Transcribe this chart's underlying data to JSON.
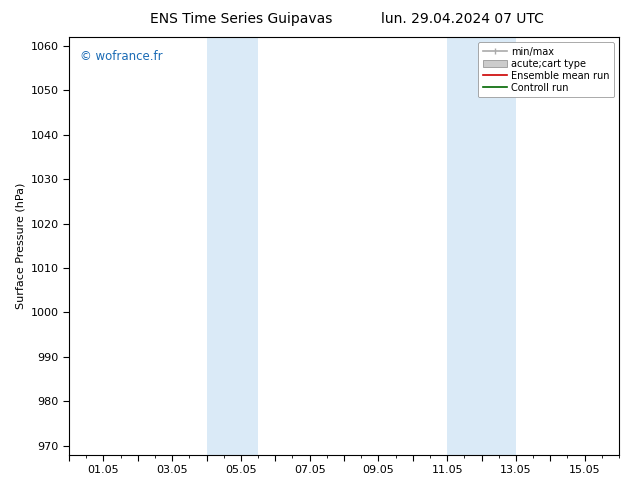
{
  "title_left": "ENS Time Series Guipavas",
  "title_right": "lun. 29.04.2024 07 UTC",
  "ylabel": "Surface Pressure (hPa)",
  "xlim": [
    0.0,
    16.0
  ],
  "ylim": [
    968,
    1062
  ],
  "yticks": [
    970,
    980,
    990,
    1000,
    1010,
    1020,
    1030,
    1040,
    1050,
    1060
  ],
  "xtick_labels": [
    "",
    "01.05",
    "",
    "03.05",
    "",
    "05.05",
    "",
    "07.05",
    "",
    "09.05",
    "",
    "11.05",
    "",
    "13.05",
    "",
    "15.05"
  ],
  "xtick_positions": [
    0,
    1,
    2,
    3,
    4,
    5,
    6,
    7,
    8,
    9,
    10,
    11,
    12,
    13,
    14,
    15
  ],
  "shaded_regions": [
    {
      "xmin": 4.0,
      "xmax": 5.5,
      "color": "#daeaf7"
    },
    {
      "xmin": 11.0,
      "xmax": 13.0,
      "color": "#daeaf7"
    }
  ],
  "watermark": "© wofrance.fr",
  "watermark_color": "#1a6bb5",
  "legend_entries": [
    {
      "label": "min/max",
      "type": "minmax",
      "color": "#aaaaaa"
    },
    {
      "label": "acute;cart type",
      "type": "patch",
      "color": "#cccccc"
    },
    {
      "label": "Ensemble mean run",
      "type": "line",
      "color": "#cc0000"
    },
    {
      "label": "Controll run",
      "type": "line",
      "color": "#006600"
    }
  ],
  "background_color": "#ffffff",
  "title_fontsize": 10,
  "label_fontsize": 8,
  "tick_fontsize": 8
}
